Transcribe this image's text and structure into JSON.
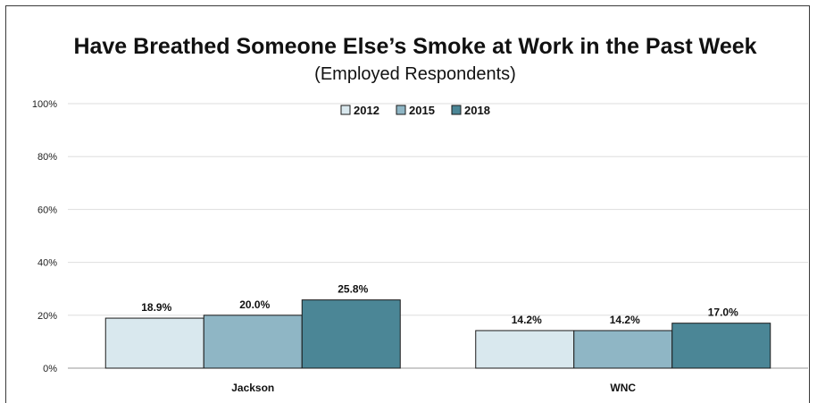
{
  "chart_data": {
    "type": "bar",
    "title": "Have Breathed Someone Else’s Smoke at Work in the Past Week",
    "subtitle": "(Employed Respondents)",
    "categories": [
      "Jackson",
      "WNC"
    ],
    "series": [
      {
        "name": "2012",
        "values": [
          18.9,
          14.2
        ],
        "labels": [
          "18.9%",
          "14.2%"
        ],
        "color": "#d9e8ee"
      },
      {
        "name": "2015",
        "values": [
          20.0,
          14.2
        ],
        "labels": [
          "20.0%",
          "14.2%"
        ],
        "color": "#8fb6c5"
      },
      {
        "name": "2018",
        "values": [
          25.8,
          17.0
        ],
        "labels": [
          "25.8%",
          "17.0%"
        ],
        "color": "#4b8696"
      }
    ],
    "ylim": [
      0,
      100
    ],
    "yticks": [
      0,
      20,
      40,
      60,
      80,
      100
    ],
    "ytick_labels": [
      "0%",
      "20%",
      "40%",
      "60%",
      "80%",
      "100%"
    ],
    "grid": true,
    "legend_position": "top-center"
  }
}
